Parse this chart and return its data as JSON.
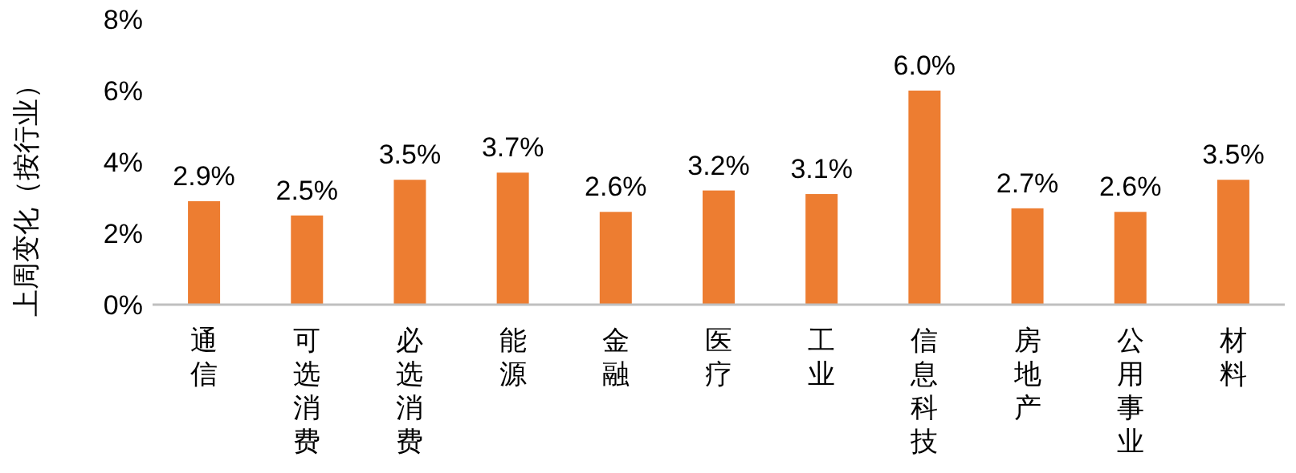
{
  "chart_data": {
    "type": "bar",
    "ylabel": "上周变化（按行业）",
    "categories": [
      "通信",
      "可选消费",
      "必选消费",
      "能源",
      "金融",
      "医疗",
      "工业",
      "信息科技",
      "房地产",
      "公用事业",
      "材料"
    ],
    "values": [
      2.9,
      2.5,
      3.5,
      3.7,
      2.6,
      3.2,
      3.1,
      6.0,
      2.7,
      2.6,
      3.5
    ],
    "value_labels": [
      "2.9%",
      "2.5%",
      "3.5%",
      "3.7%",
      "2.6%",
      "3.2%",
      "3.1%",
      "6.0%",
      "2.7%",
      "2.6%",
      "3.5%"
    ],
    "color": "#ed7d31",
    "ylim": [
      0,
      8
    ],
    "yticks": [
      {
        "value": 0,
        "label": "0%"
      },
      {
        "value": 2,
        "label": "2%"
      },
      {
        "value": 4,
        "label": "4%"
      },
      {
        "value": 6,
        "label": "6%"
      },
      {
        "value": 8,
        "label": "8%"
      }
    ],
    "grid": false
  }
}
